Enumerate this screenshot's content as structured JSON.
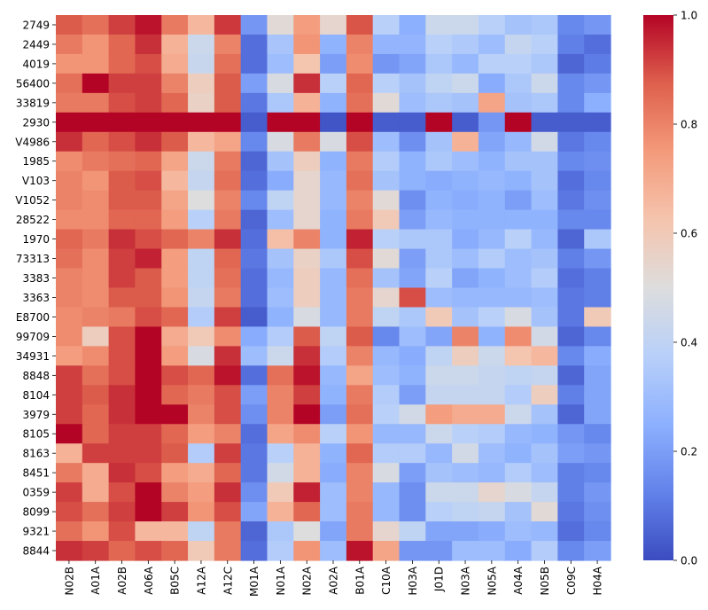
{
  "chart_data": {
    "type": "heatmap",
    "title": "",
    "xlabel": "",
    "ylabel": "",
    "x_categories": [
      "N02B",
      "A01A",
      "A02B",
      "A06A",
      "B05C",
      "A12A",
      "A12C",
      "M01A",
      "N01A",
      "N02A",
      "A02A",
      "B01A",
      "C10A",
      "H03A",
      "J01D",
      "N03A",
      "N05A",
      "A04A",
      "N05B",
      "C09C",
      "H04A"
    ],
    "y_categories": [
      "2749",
      "2449",
      "4019",
      "56400",
      "33819",
      "2930",
      "V4986",
      "1985",
      "V103",
      "V1052",
      "28522",
      "1970",
      "73313",
      "3383",
      "3363",
      "E8700",
      "99709",
      "34931",
      "8848",
      "8104",
      "3979",
      "8105",
      "8163",
      "8451",
      "0359",
      "8099",
      "9321",
      "8844"
    ],
    "values": [
      [
        0.88,
        0.84,
        0.92,
        0.98,
        0.82,
        0.66,
        0.93,
        0.18,
        0.52,
        0.74,
        0.54,
        0.89,
        0.38,
        0.25,
        0.44,
        0.44,
        0.38,
        0.32,
        0.34,
        0.14,
        0.18
      ],
      [
        0.82,
        0.76,
        0.86,
        0.94,
        0.68,
        0.44,
        0.8,
        0.08,
        0.33,
        0.76,
        0.26,
        0.8,
        0.27,
        0.27,
        0.38,
        0.35,
        0.3,
        0.42,
        0.38,
        0.12,
        0.08
      ],
      [
        0.76,
        0.76,
        0.86,
        0.9,
        0.7,
        0.43,
        0.84,
        0.08,
        0.3,
        0.62,
        0.2,
        0.78,
        0.18,
        0.22,
        0.34,
        0.28,
        0.38,
        0.38,
        0.34,
        0.06,
        0.11
      ],
      [
        0.84,
        1.0,
        0.92,
        0.92,
        0.8,
        0.58,
        0.88,
        0.2,
        0.48,
        0.94,
        0.38,
        0.86,
        0.38,
        0.32,
        0.4,
        0.44,
        0.24,
        0.34,
        0.44,
        0.14,
        0.18
      ],
      [
        0.82,
        0.82,
        0.9,
        0.92,
        0.86,
        0.56,
        0.88,
        0.1,
        0.34,
        0.68,
        0.26,
        0.84,
        0.52,
        0.3,
        0.34,
        0.32,
        0.72,
        0.32,
        0.34,
        0.14,
        0.25
      ],
      [
        1.0,
        1.0,
        1.0,
        1.0,
        1.0,
        1.0,
        1.0,
        0.04,
        1.0,
        1.0,
        0.02,
        1.0,
        0.04,
        0.04,
        1.0,
        0.04,
        0.18,
        1.0,
        0.04,
        0.04,
        0.04
      ],
      [
        0.94,
        0.86,
        0.9,
        0.94,
        0.88,
        0.66,
        0.72,
        0.14,
        0.48,
        0.82,
        0.48,
        0.9,
        0.3,
        0.16,
        0.32,
        0.68,
        0.22,
        0.28,
        0.46,
        0.1,
        0.14
      ],
      [
        0.78,
        0.82,
        0.84,
        0.86,
        0.72,
        0.44,
        0.82,
        0.06,
        0.32,
        0.58,
        0.26,
        0.82,
        0.36,
        0.26,
        0.34,
        0.3,
        0.26,
        0.32,
        0.32,
        0.14,
        0.16
      ],
      [
        0.8,
        0.76,
        0.88,
        0.9,
        0.66,
        0.42,
        0.84,
        0.08,
        0.24,
        0.54,
        0.28,
        0.84,
        0.32,
        0.26,
        0.24,
        0.26,
        0.28,
        0.26,
        0.32,
        0.08,
        0.14
      ],
      [
        0.8,
        0.78,
        0.88,
        0.88,
        0.72,
        0.5,
        0.8,
        0.14,
        0.4,
        0.54,
        0.28,
        0.8,
        0.52,
        0.16,
        0.26,
        0.24,
        0.26,
        0.2,
        0.3,
        0.1,
        0.16
      ],
      [
        0.78,
        0.78,
        0.86,
        0.86,
        0.74,
        0.38,
        0.82,
        0.06,
        0.3,
        0.54,
        0.26,
        0.82,
        0.6,
        0.2,
        0.28,
        0.26,
        0.26,
        0.26,
        0.26,
        0.14,
        0.14
      ],
      [
        0.86,
        0.82,
        0.94,
        0.9,
        0.86,
        0.8,
        0.94,
        0.08,
        0.64,
        0.8,
        0.26,
        0.96,
        0.38,
        0.34,
        0.34,
        0.24,
        0.28,
        0.38,
        0.28,
        0.06,
        0.34
      ],
      [
        0.84,
        0.78,
        0.92,
        0.96,
        0.74,
        0.4,
        0.86,
        0.1,
        0.32,
        0.56,
        0.34,
        0.9,
        0.52,
        0.2,
        0.34,
        0.3,
        0.36,
        0.3,
        0.32,
        0.12,
        0.18
      ],
      [
        0.8,
        0.78,
        0.92,
        0.88,
        0.74,
        0.4,
        0.84,
        0.08,
        0.28,
        0.58,
        0.28,
        0.84,
        0.32,
        0.22,
        0.38,
        0.22,
        0.26,
        0.3,
        0.36,
        0.08,
        0.12
      ],
      [
        0.8,
        0.78,
        0.88,
        0.88,
        0.76,
        0.42,
        0.82,
        0.08,
        0.3,
        0.58,
        0.28,
        0.82,
        0.54,
        0.9,
        0.3,
        0.28,
        0.28,
        0.28,
        0.3,
        0.1,
        0.12
      ],
      [
        0.78,
        0.8,
        0.82,
        0.9,
        0.86,
        0.36,
        0.92,
        0.04,
        0.26,
        0.48,
        0.28,
        0.82,
        0.4,
        0.34,
        0.6,
        0.32,
        0.38,
        0.48,
        0.32,
        0.1,
        0.6
      ],
      [
        0.78,
        0.58,
        0.9,
        1.0,
        0.7,
        0.6,
        0.78,
        0.24,
        0.36,
        0.88,
        0.4,
        0.88,
        0.14,
        0.3,
        0.22,
        0.8,
        0.26,
        0.78,
        0.46,
        0.06,
        0.14
      ],
      [
        0.74,
        0.78,
        0.9,
        1.0,
        0.74,
        0.48,
        0.94,
        0.3,
        0.44,
        0.94,
        0.36,
        0.8,
        0.28,
        0.24,
        0.4,
        0.58,
        0.44,
        0.62,
        0.66,
        0.14,
        0.24
      ],
      [
        0.92,
        0.84,
        0.9,
        1.0,
        0.9,
        0.86,
        0.98,
        0.08,
        0.84,
        0.98,
        0.28,
        0.72,
        0.3,
        0.26,
        0.44,
        0.44,
        0.42,
        0.4,
        0.42,
        0.06,
        0.22
      ],
      [
        0.92,
        0.88,
        0.94,
        1.0,
        0.86,
        0.82,
        0.9,
        0.2,
        0.8,
        0.92,
        0.26,
        0.82,
        0.36,
        0.2,
        0.42,
        0.42,
        0.42,
        0.36,
        0.58,
        0.12,
        0.22
      ],
      [
        0.92,
        0.86,
        0.94,
        1.0,
        1.0,
        0.8,
        0.9,
        0.16,
        0.8,
        1.0,
        0.2,
        0.84,
        0.38,
        0.46,
        0.74,
        0.7,
        0.7,
        0.44,
        0.32,
        0.06,
        0.22
      ],
      [
        1.0,
        0.86,
        0.92,
        0.92,
        0.86,
        0.74,
        0.8,
        0.08,
        0.72,
        0.78,
        0.38,
        0.76,
        0.28,
        0.28,
        0.44,
        0.38,
        0.36,
        0.28,
        0.26,
        0.18,
        0.14
      ],
      [
        0.68,
        0.92,
        0.92,
        0.92,
        0.88,
        0.36,
        0.92,
        0.1,
        0.38,
        0.68,
        0.26,
        0.86,
        0.36,
        0.36,
        0.28,
        0.46,
        0.3,
        0.26,
        0.32,
        0.2,
        0.18
      ],
      [
        0.82,
        0.7,
        0.94,
        0.9,
        0.74,
        0.7,
        0.86,
        0.1,
        0.46,
        0.68,
        0.24,
        0.8,
        0.48,
        0.2,
        0.32,
        0.3,
        0.28,
        0.36,
        0.3,
        0.12,
        0.14
      ],
      [
        0.92,
        0.7,
        0.9,
        1.0,
        0.8,
        0.74,
        0.94,
        0.16,
        0.6,
        0.96,
        0.3,
        0.8,
        0.28,
        0.16,
        0.44,
        0.44,
        0.54,
        0.48,
        0.42,
        0.12,
        0.18
      ],
      [
        0.9,
        0.84,
        0.92,
        1.0,
        0.92,
        0.76,
        0.9,
        0.22,
        0.68,
        0.86,
        0.3,
        0.82,
        0.28,
        0.16,
        0.38,
        0.4,
        0.42,
        0.32,
        0.52,
        0.1,
        0.16
      ],
      [
        0.84,
        0.76,
        0.9,
        0.66,
        0.66,
        0.4,
        0.82,
        0.06,
        0.34,
        0.5,
        0.22,
        0.82,
        0.54,
        0.4,
        0.22,
        0.22,
        0.24,
        0.3,
        0.28,
        0.08,
        0.14
      ],
      [
        0.94,
        0.92,
        0.86,
        0.9,
        0.86,
        0.6,
        0.82,
        0.08,
        0.36,
        0.76,
        0.3,
        0.98,
        0.72,
        0.18,
        0.18,
        0.3,
        0.3,
        0.24,
        0.36,
        0.14,
        0.2
      ]
    ],
    "colormap": "coolwarm",
    "vmin": 0.0,
    "vmax": 1.0,
    "colorbar_ticks": [
      0.0,
      0.2,
      0.4,
      0.6,
      0.8,
      1.0
    ],
    "colorbar_tick_labels": [
      "0.0",
      "0.2",
      "0.4",
      "0.6",
      "0.8",
      "1.0"
    ],
    "legend": "colorbar-right"
  }
}
